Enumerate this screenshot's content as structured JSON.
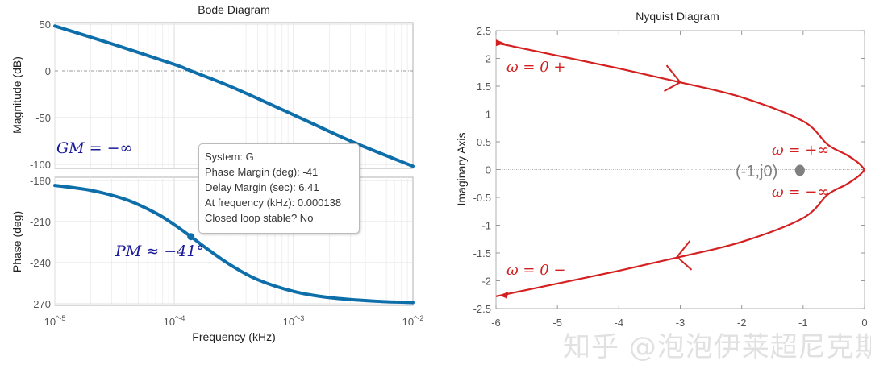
{
  "colors": {
    "bode_line": "#0d6eaa",
    "nyquist_line": "#d42020",
    "annotation_blue": "#1a1a9a",
    "point_gray": "#808080"
  },
  "chart_data": [
    {
      "type": "line",
      "title": "Bode Diagram",
      "xlabel": "Frequency  (kHz)",
      "x_scale": "log",
      "xlim": [
        1e-05,
        0.01
      ],
      "x_ticks": [
        "10^-5",
        "10^-4",
        "10^-3",
        "10^-2"
      ],
      "grid": true,
      "subplots": [
        {
          "ylabel": "Magnitude (dB)",
          "ylim": [
            -103,
            50
          ],
          "y_ticks": [
            50,
            0,
            -50,
            -100
          ],
          "x": [
            1e-05,
            3e-05,
            0.0001,
            0.000138,
            0.0003,
            0.001,
            0.003,
            0.01
          ],
          "values": [
            48,
            29,
            7,
            0,
            -17,
            -47,
            -75,
            -102
          ],
          "annotation": "GM = −∞"
        },
        {
          "ylabel": "Phase (deg)",
          "ylim": [
            -272,
            -178
          ],
          "y_ticks": [
            -180,
            -210,
            -240,
            -270
          ],
          "x": [
            1e-05,
            2e-05,
            4e-05,
            7e-05,
            0.0001,
            0.000138,
            0.0002,
            0.0003,
            0.0005,
            0.001,
            0.002,
            0.005,
            0.01
          ],
          "values": [
            -183.6,
            -187.2,
            -194.1,
            -203.8,
            -212.2,
            -221,
            -231.5,
            -242,
            -252.4,
            -261,
            -265.5,
            -268.2,
            -269.1
          ],
          "marker": {
            "x": 0.000138,
            "y": -221
          },
          "annotation": "PM ≈ −41°"
        }
      ],
      "datatip": [
        "System: G",
        "Phase Margin (deg): -41",
        "Delay Margin (sec): 6.41",
        "At frequency (kHz): 0.000138",
        "Closed loop stable? No"
      ]
    },
    {
      "type": "line",
      "title": "Nyquist Diagram",
      "ylabel": "Imaginary Axis",
      "xlim": [
        -6,
        0
      ],
      "ylim": [
        -2.5,
        2.5
      ],
      "x_ticks": [
        -6,
        -5,
        -4,
        -3,
        -2,
        -1,
        0
      ],
      "y_ticks": [
        2.5,
        2,
        1.5,
        1,
        0.5,
        0,
        -0.5,
        -1,
        -1.5,
        -2,
        -2.5
      ],
      "grid": false,
      "upper": {
        "x": [
          -6,
          -5,
          -4,
          -3,
          -2,
          -1,
          -0.6,
          -0.3,
          -0.1,
          0
        ],
        "y": [
          2.28,
          2.05,
          1.82,
          1.57,
          1.3,
          0.87,
          0.45,
          0.27,
          0.12,
          0
        ]
      },
      "lower": {
        "x": [
          -6,
          -5,
          -4,
          -3,
          -2,
          -1,
          -0.6,
          -0.3,
          -0.1,
          0
        ],
        "y": [
          -2.28,
          -2.05,
          -1.82,
          -1.57,
          -1.3,
          -0.87,
          -0.45,
          -0.27,
          -0.12,
          0
        ]
      },
      "critical_point": {
        "x": -1,
        "y": 0,
        "label": "(-1,j0)"
      },
      "annotations": [
        "ω = 0 +",
        "ω = +∞",
        "ω = −∞",
        "ω = 0 −"
      ]
    }
  ],
  "watermark": "知乎 @泡泡伊莱超尼克斯"
}
